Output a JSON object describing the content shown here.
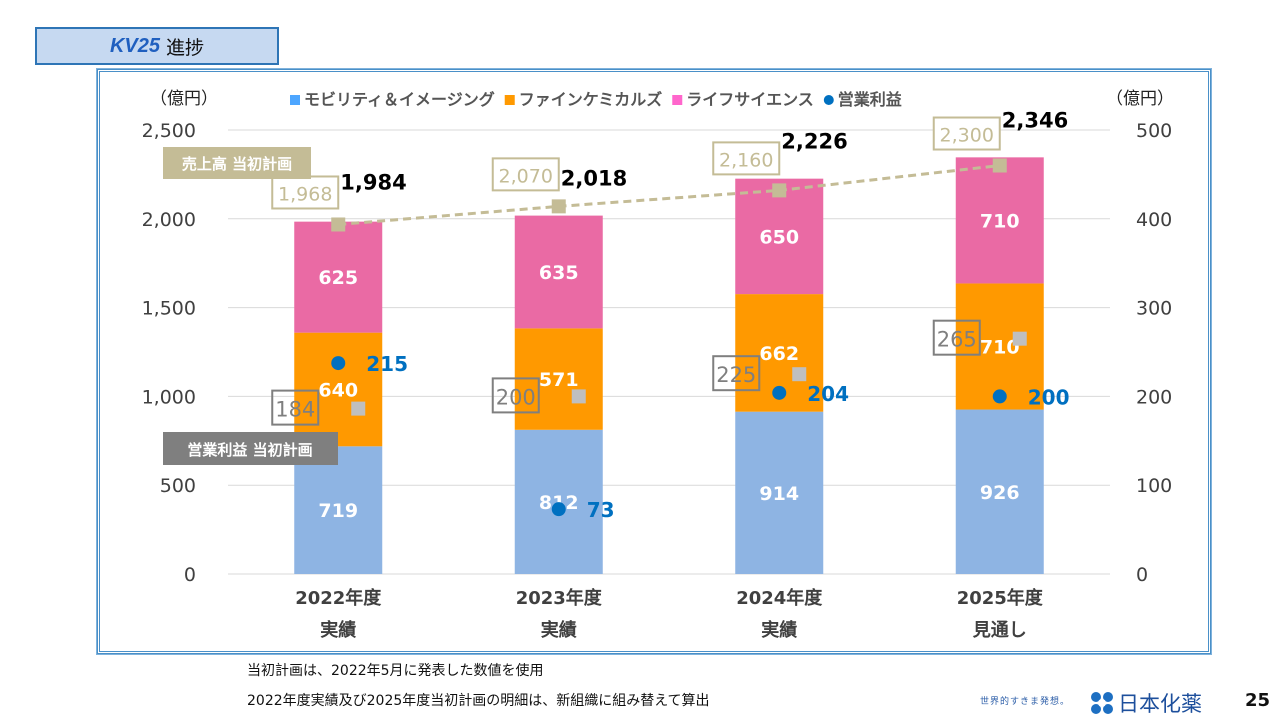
{
  "slide": {
    "title_brand": "KV25",
    "title_text": "進捗",
    "notes": [
      "当初計画は、2022年5月に発表した数値を使用",
      "2022年度実績及び2025年度当初計画の明細は、新組織に組み替えて算出"
    ],
    "footer_slogan": "世界的すきま発想。",
    "company_logo": "日本化薬",
    "page_number": "25"
  },
  "chart_data": {
    "type": "bar",
    "stacked": true,
    "title": "",
    "categories": [
      "2022年度\n実績",
      "2023年度\n実績",
      "2024年度\n実績",
      "2025年度\n見通し"
    ],
    "category_lines": [
      [
        "2022年度",
        "実績"
      ],
      [
        "2023年度",
        "実績"
      ],
      [
        "2024年度",
        "実績"
      ],
      [
        "2025年度",
        "見通し"
      ]
    ],
    "ylabel_left": "（億円）",
    "ylabel_right": "（億円）",
    "ylim_left": [
      0,
      2500
    ],
    "ylim_right": [
      0,
      500
    ],
    "yticks_left": [
      "0",
      "500",
      "1,000",
      "1,500",
      "2,000",
      "2,500"
    ],
    "yticks_right": [
      "0",
      "100",
      "200",
      "300",
      "400",
      "500"
    ],
    "grid": true,
    "legend_position": "top",
    "series": [
      {
        "name": "モビリティ＆イメージング",
        "color": "#8eb4e3",
        "legend_color": "#4da6ff",
        "values": [
          719,
          812,
          914,
          926
        ]
      },
      {
        "name": "ファインケミカルズ",
        "color": "#ff9900",
        "legend_color": "#ff9900",
        "values": [
          640,
          571,
          662,
          710
        ]
      },
      {
        "name": "ライフサイエンス",
        "color": "#ea6aa4",
        "legend_color": "#ff66cc",
        "values": [
          625,
          635,
          650,
          710
        ]
      }
    ],
    "totals": [
      "1,984",
      "2,018",
      "2,226",
      "2,346"
    ],
    "sales_plan": {
      "label": "売上高 当初計画",
      "color": "#c4bc96",
      "values": [
        1968,
        2070,
        2160,
        2300
      ],
      "labels": [
        "1,968",
        "2,070",
        "2,160",
        "2,300"
      ]
    },
    "operating_profit": {
      "name": "営業利益",
      "axis": "right",
      "color": "#0070c0",
      "values": [
        215,
        73,
        204,
        200
      ]
    },
    "operating_profit_plan": {
      "label": "営業利益 当初計画",
      "axis": "right",
      "color": "#bfbfbf",
      "values": [
        184,
        200,
        225,
        265
      ]
    }
  }
}
